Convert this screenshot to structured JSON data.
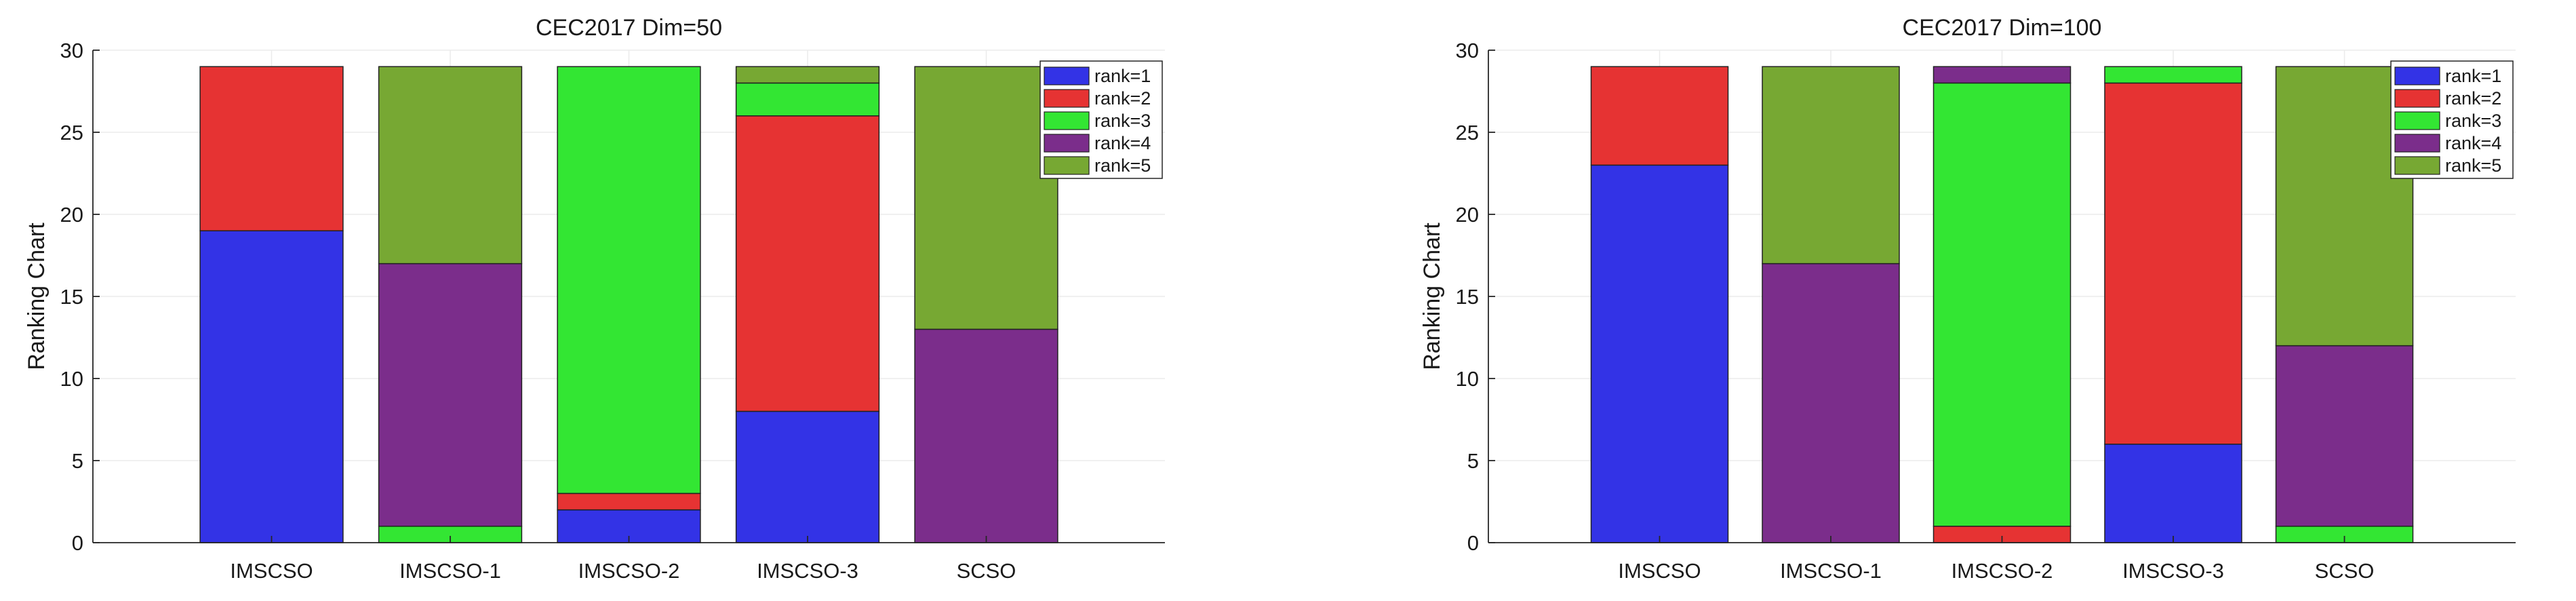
{
  "chart_data": [
    {
      "type": "bar",
      "stacked": true,
      "title": "CEC2017 Dim=50",
      "xlabel": "",
      "ylabel": "Ranking Chart",
      "ylim": [
        0,
        30
      ],
      "yticks": [
        0,
        5,
        10,
        15,
        20,
        25,
        30
      ],
      "grid": true,
      "legend_position": "top-right",
      "categories": [
        "IMSCSO",
        "IMSCSO-1",
        "IMSCSO-2",
        "IMSCSO-3",
        "SCSO"
      ],
      "series": [
        {
          "name": "rank=1",
          "color": "#3333e6",
          "values": [
            19,
            0,
            2,
            8,
            0
          ]
        },
        {
          "name": "rank=2",
          "color": "#e63333",
          "values": [
            10,
            0,
            1,
            18,
            0
          ]
        },
        {
          "name": "rank=3",
          "color": "#33e633",
          "values": [
            0,
            1,
            26,
            2,
            0
          ]
        },
        {
          "name": "rank=4",
          "color": "#7b2d8b",
          "values": [
            0,
            16,
            0,
            0,
            13
          ]
        },
        {
          "name": "rank=5",
          "color": "#77a833",
          "values": [
            0,
            12,
            0,
            1,
            16
          ]
        }
      ]
    },
    {
      "type": "bar",
      "stacked": true,
      "title": "CEC2017 Dim=100",
      "xlabel": "",
      "ylabel": "Ranking Chart",
      "ylim": [
        0,
        30
      ],
      "yticks": [
        0,
        5,
        10,
        15,
        20,
        25,
        30
      ],
      "grid": true,
      "legend_position": "top-right",
      "categories": [
        "IMSCSO",
        "IMSCSO-1",
        "IMSCSO-2",
        "IMSCSO-3",
        "SCSO"
      ],
      "series": [
        {
          "name": "rank=1",
          "color": "#3333e6",
          "values": [
            23,
            0,
            0,
            6,
            0
          ]
        },
        {
          "name": "rank=2",
          "color": "#e63333",
          "values": [
            6,
            0,
            1,
            22,
            0
          ]
        },
        {
          "name": "rank=3",
          "color": "#33e633",
          "values": [
            0,
            0,
            27,
            1,
            1
          ]
        },
        {
          "name": "rank=4",
          "color": "#7b2d8b",
          "values": [
            0,
            17,
            1,
            0,
            11
          ]
        },
        {
          "name": "rank=5",
          "color": "#77a833",
          "values": [
            0,
            12,
            0,
            0,
            17
          ]
        }
      ]
    }
  ]
}
